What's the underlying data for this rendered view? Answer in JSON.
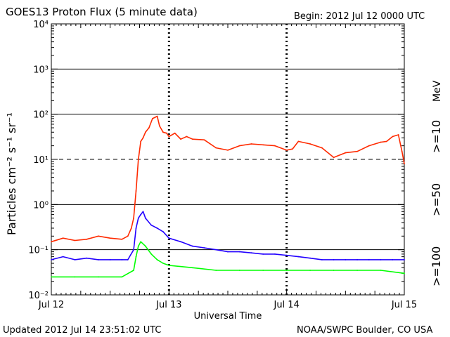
{
  "header": {
    "title": "GOES13 Proton Flux (5 minute data)",
    "begin": "Begin: 2012 Jul 12 0000 UTC"
  },
  "footer": {
    "updated": "Updated 2012 Jul 14 23:51:02 UTC",
    "credit": "NOAA/SWPC Boulder, CO USA"
  },
  "colors": {
    "red": "#ff2a00",
    "blue": "#2200ff",
    "green": "#00ff00",
    "axis": "#000000"
  },
  "chart_data": {
    "type": "line",
    "title": "GOES13 Proton Flux (5 minute data)",
    "xlabel": "Universal Time",
    "ylabel": "Particles cm⁻² s⁻¹ sr⁻¹",
    "yscale": "log",
    "ylim": [
      0.01,
      10000
    ],
    "xlim_days": [
      0,
      3
    ],
    "x_ticks": [
      {
        "day": 0,
        "label": "Jul 12"
      },
      {
        "day": 1,
        "label": "Jul 13"
      },
      {
        "day": 2,
        "label": "Jul 14"
      },
      {
        "day": 3,
        "label": "Jul 15"
      }
    ],
    "y_ticks": [
      {
        "exp": -2,
        "label": "10⁻²"
      },
      {
        "exp": -1,
        "label": "10⁻¹"
      },
      {
        "exp": 0,
        "label": "10⁰"
      },
      {
        "exp": 1,
        "label": "10¹"
      },
      {
        "exp": 2,
        "label": "10²"
      },
      {
        "exp": 3,
        "label": "10³"
      },
      {
        "exp": 4,
        "label": "10⁴"
      }
    ],
    "reference_lines": [
      {
        "exp": -1,
        "style": "solid"
      },
      {
        "exp": 0,
        "style": "solid"
      },
      {
        "exp": 1,
        "style": "dashed"
      },
      {
        "exp": 2,
        "style": "solid"
      },
      {
        "exp": 3,
        "style": "solid"
      }
    ],
    "legend": {
      "unit": "MeV",
      "entries": [
        {
          "label": ">=10",
          "color": "#ff2a00"
        },
        {
          "label": ">=50",
          "color": "#2200ff"
        },
        {
          "label": ">=100",
          "color": "#00ff00"
        }
      ]
    },
    "series": [
      {
        "name": ">=10 MeV",
        "color": "#ff2a00",
        "x": [
          0,
          0.1,
          0.2,
          0.3,
          0.4,
          0.5,
          0.6,
          0.65,
          0.68,
          0.7,
          0.72,
          0.74,
          0.76,
          0.78,
          0.8,
          0.83,
          0.86,
          0.9,
          0.92,
          0.95,
          0.98,
          1.0,
          1.05,
          1.1,
          1.15,
          1.2,
          1.3,
          1.4,
          1.5,
          1.6,
          1.7,
          1.8,
          1.9,
          2.0,
          2.05,
          2.1,
          2.2,
          2.3,
          2.4,
          2.5,
          2.6,
          2.7,
          2.8,
          2.85,
          2.9,
          2.95,
          2.98,
          3.0
        ],
        "values": [
          0.15,
          0.18,
          0.16,
          0.17,
          0.2,
          0.18,
          0.17,
          0.2,
          0.3,
          0.5,
          2,
          10,
          25,
          30,
          40,
          50,
          80,
          90,
          55,
          40,
          38,
          32,
          38,
          28,
          32,
          28,
          27,
          18,
          16,
          20,
          22,
          21,
          20,
          16,
          17,
          25,
          22,
          18,
          11,
          14,
          15,
          20,
          24,
          25,
          32,
          35,
          15,
          8
        ]
      },
      {
        "name": ">=50 MeV",
        "color": "#2200ff",
        "x": [
          0,
          0.1,
          0.2,
          0.3,
          0.4,
          0.5,
          0.6,
          0.65,
          0.7,
          0.72,
          0.74,
          0.76,
          0.78,
          0.8,
          0.85,
          0.9,
          0.95,
          1.0,
          1.1,
          1.2,
          1.3,
          1.4,
          1.5,
          1.6,
          1.7,
          1.8,
          1.9,
          2.0,
          2.1,
          2.2,
          2.3,
          2.4,
          2.5,
          2.6,
          2.7,
          2.8,
          2.9,
          3.0
        ],
        "values": [
          0.06,
          0.07,
          0.06,
          0.065,
          0.06,
          0.06,
          0.06,
          0.06,
          0.1,
          0.3,
          0.5,
          0.6,
          0.7,
          0.5,
          0.35,
          0.3,
          0.25,
          0.18,
          0.15,
          0.12,
          0.11,
          0.1,
          0.09,
          0.09,
          0.085,
          0.08,
          0.08,
          0.075,
          0.07,
          0.065,
          0.06,
          0.06,
          0.06,
          0.06,
          0.06,
          0.06,
          0.06,
          0.06
        ]
      },
      {
        "name": ">=100 MeV",
        "color": "#00ff00",
        "x": [
          0,
          0.2,
          0.4,
          0.6,
          0.7,
          0.72,
          0.74,
          0.76,
          0.8,
          0.85,
          0.9,
          0.95,
          1.0,
          1.2,
          1.4,
          1.6,
          1.8,
          2.0,
          2.2,
          2.4,
          2.6,
          2.8,
          3.0
        ],
        "values": [
          0.025,
          0.025,
          0.025,
          0.025,
          0.035,
          0.07,
          0.12,
          0.15,
          0.12,
          0.08,
          0.06,
          0.05,
          0.045,
          0.04,
          0.035,
          0.035,
          0.035,
          0.035,
          0.035,
          0.035,
          0.035,
          0.035,
          0.03
        ]
      }
    ]
  }
}
